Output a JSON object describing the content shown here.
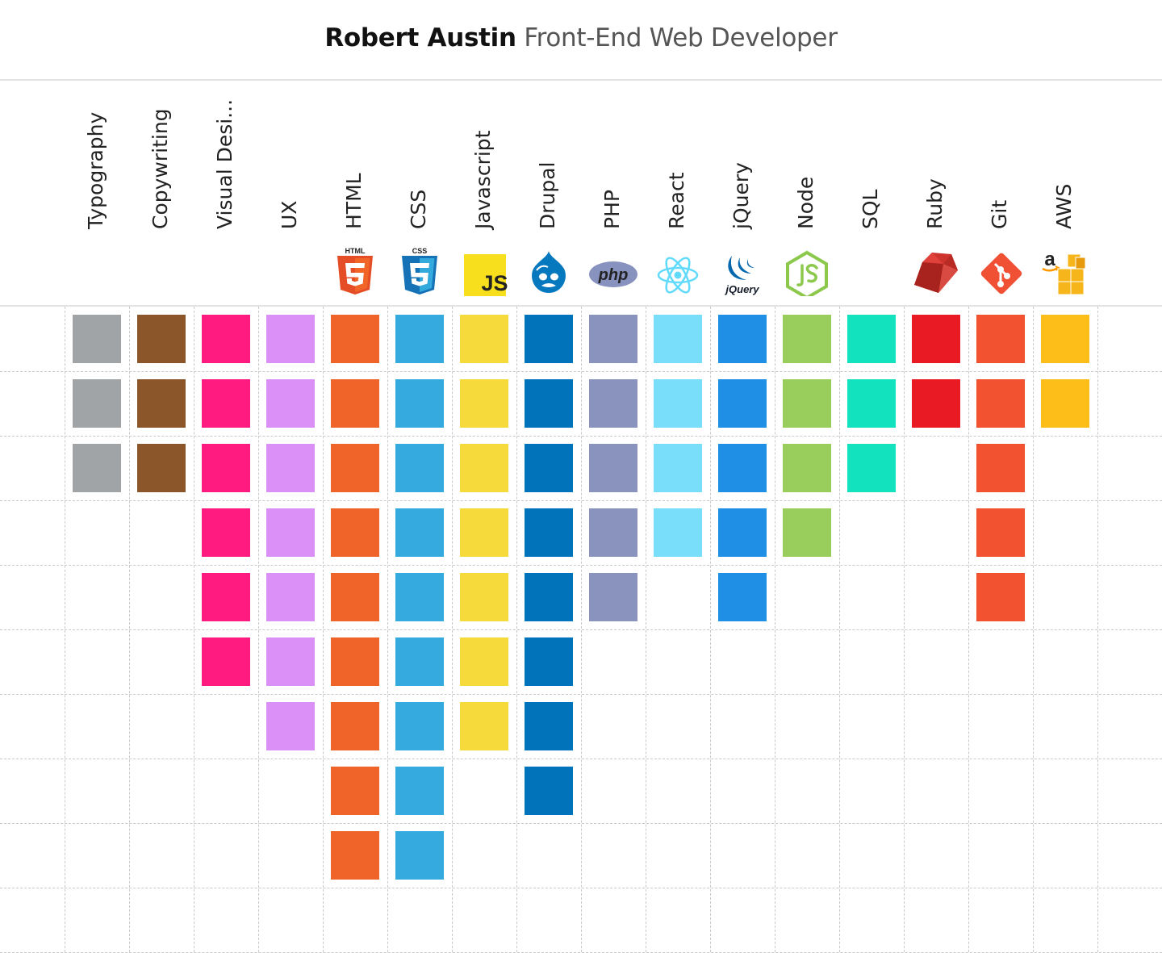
{
  "header": {
    "name": "Robert Austin",
    "role": "Front-End Web Developer"
  },
  "skills": [
    {
      "label": "Typography",
      "level": 3,
      "color": "#A0A4A7",
      "icon": ""
    },
    {
      "label": "Copywriting",
      "level": 3,
      "color": "#8B572A",
      "icon": ""
    },
    {
      "label": "Visual Desi...",
      "level": 6,
      "color": "#FF1B7F",
      "icon": ""
    },
    {
      "label": "UX",
      "level": 7,
      "color": "#DA90F7",
      "icon": ""
    },
    {
      "label": "HTML",
      "level": 9,
      "color": "#F0642A",
      "icon": "html5-icon"
    },
    {
      "label": "CSS",
      "level": 9,
      "color": "#35AADF",
      "icon": "css3-icon"
    },
    {
      "label": "Javascript",
      "level": 7,
      "color": "#F6DA3B",
      "icon": "javascript-icon"
    },
    {
      "label": "Drupal",
      "level": 8,
      "color": "#0073BA",
      "icon": "drupal-icon"
    },
    {
      "label": "PHP",
      "level": 5,
      "color": "#8A93BE",
      "icon": "php-icon"
    },
    {
      "label": "React",
      "level": 4,
      "color": "#79DEFA",
      "icon": "react-icon"
    },
    {
      "label": "jQuery",
      "level": 5,
      "color": "#1F8FE5",
      "icon": "jquery-icon"
    },
    {
      "label": "Node",
      "level": 4,
      "color": "#99CE5C",
      "icon": "nodejs-icon"
    },
    {
      "label": "SQL",
      "level": 3,
      "color": "#13E2BF",
      "icon": ""
    },
    {
      "label": "Ruby",
      "level": 2,
      "color": "#EA1A24",
      "icon": "ruby-icon"
    },
    {
      "label": "Git",
      "level": 5,
      "color": "#F35230",
      "icon": "git-icon"
    },
    {
      "label": "AWS",
      "level": 2,
      "color": "#FDBE19",
      "icon": "aws-icon"
    }
  ],
  "icon_text": {
    "html5": "HTML",
    "css3": "CSS",
    "js": "JS",
    "php": "php",
    "jquery": "jQuery"
  }
}
